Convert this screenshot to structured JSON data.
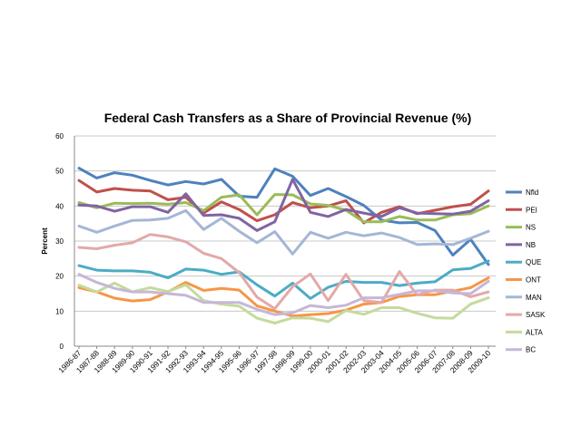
{
  "chart_data": {
    "type": "line",
    "title": "Federal Cash Transfers as a Share of Provincial Revenue (%)",
    "xlabel": "",
    "ylabel": "Percent",
    "ylim": [
      0,
      60
    ],
    "yticks": [
      "0",
      "10",
      "20",
      "30",
      "40",
      "50",
      "60"
    ],
    "grid": true,
    "legend_position": "right",
    "categories": [
      "1986-87",
      "1987-88",
      "1988-89",
      "1989-90",
      "1990-91",
      "1991-92",
      "1992-93",
      "1993-94",
      "1994-95",
      "1995-96",
      "1996-97",
      "1997-98",
      "1998-99",
      "1999-00",
      "2000-01",
      "2001-02",
      "2002-03",
      "2003-04",
      "2004-05",
      "2005-06",
      "2006-07",
      "2007-08",
      "2008-09",
      "2009-10"
    ],
    "series": [
      {
        "name": "Nfld",
        "color": "#4f81bd",
        "values": [
          50.8,
          48,
          49.5,
          48.8,
          47.3,
          46,
          47,
          46.3,
          47.6,
          42.8,
          42.5,
          50.6,
          48.5,
          43,
          45,
          42.7,
          40.2,
          36,
          35.2,
          35.3,
          33,
          26,
          30.5,
          23.3
        ]
      },
      {
        "name": "PEI",
        "color": "#c0504d",
        "values": [
          47.3,
          44,
          45,
          44.5,
          44.3,
          41.8,
          42.5,
          38,
          41.2,
          39,
          35.8,
          37.5,
          41,
          39.5,
          40,
          41.5,
          35.2,
          38.2,
          39.8,
          37.8,
          38.8,
          39.8,
          40.5,
          44.3
        ]
      },
      {
        "name": "NS",
        "color": "#9bbb59",
        "values": [
          41,
          39.5,
          40.8,
          40.7,
          40.8,
          40.5,
          41,
          38.7,
          42.5,
          43.2,
          37.5,
          43.3,
          43.2,
          40.6,
          40.2,
          38.8,
          35.5,
          35.5,
          37,
          36,
          36,
          37.5,
          37.8,
          40
        ]
      },
      {
        "name": "NB",
        "color": "#8064a2",
        "values": [
          40.3,
          40,
          38.5,
          39.8,
          39.8,
          38.2,
          43.5,
          37.3,
          37.5,
          36.5,
          33,
          35.5,
          47.6,
          38.2,
          37,
          39,
          38,
          37,
          39.5,
          38,
          37.8,
          37.7,
          38.5,
          41.5
        ]
      },
      {
        "name": "QUE",
        "color": "#4bacc6",
        "values": [
          23,
          21.7,
          21.5,
          21.5,
          21.1,
          19.5,
          22,
          21.7,
          20.5,
          21.2,
          17.5,
          14.3,
          18,
          13.6,
          16.8,
          18.5,
          18.2,
          18.2,
          17.3,
          18,
          18.4,
          21.8,
          22.2,
          24.3
        ]
      },
      {
        "name": "ONT",
        "color": "#f79646",
        "values": [
          16.7,
          15.5,
          13.7,
          12.9,
          13.3,
          15.5,
          18.2,
          15.9,
          16.5,
          16,
          11.5,
          10,
          8.6,
          9,
          9.3,
          10.3,
          12,
          12.5,
          14.2,
          14.7,
          14.7,
          15.7,
          16.7,
          19.5
        ]
      },
      {
        "name": "MAN",
        "color": "#a5b6d6",
        "values": [
          34.3,
          32.5,
          34.3,
          35.9,
          36,
          36.5,
          38.7,
          33.3,
          36.5,
          32.8,
          29.5,
          32.7,
          26.3,
          32.5,
          30.8,
          32.5,
          31.5,
          32.3,
          31,
          29,
          29.2,
          29,
          30.8,
          32.8
        ]
      },
      {
        "name": "SASK",
        "color": "#e2a9a9",
        "values": [
          28.2,
          27.8,
          28.8,
          29.5,
          31.9,
          31.2,
          29.8,
          26.5,
          25,
          21,
          14,
          10.7,
          17,
          20.6,
          13,
          20.5,
          13,
          12.5,
          21.3,
          14.6,
          16,
          16,
          14.1,
          15.5
        ]
      },
      {
        "name": "ALTA",
        "color": "#c5da9d",
        "values": [
          17.4,
          15.5,
          18,
          15.5,
          16.7,
          15.6,
          17.5,
          13,
          12,
          11.4,
          8,
          6.6,
          8.1,
          8,
          7,
          10.2,
          9.1,
          11,
          11,
          9.4,
          8.1,
          8,
          12,
          13.8
        ]
      },
      {
        "name": "BC",
        "color": "#c6b7d7",
        "values": [
          20.5,
          18.2,
          16.5,
          15.5,
          15.5,
          15,
          14.5,
          12.5,
          12.5,
          12.5,
          10.5,
          9,
          9.5,
          11.6,
          11,
          11.7,
          13.8,
          13.8,
          14.8,
          15.8,
          15.8,
          15.2,
          15,
          18.5
        ]
      }
    ]
  }
}
